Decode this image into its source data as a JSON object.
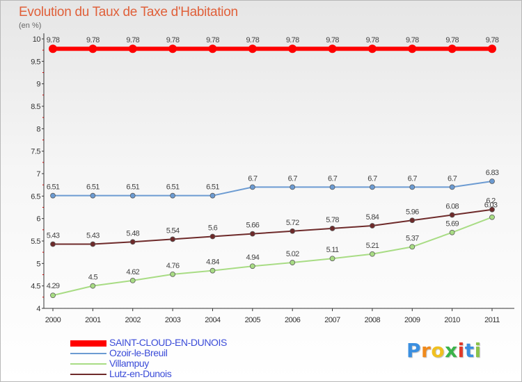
{
  "chart_data": {
    "type": "line",
    "title": "Evolution du Taux de Taxe d'Habitation",
    "subtitle": "(en %)",
    "x": [
      "2000",
      "2001",
      "2002",
      "2003",
      "2004",
      "2005",
      "2006",
      "2007",
      "2008",
      "2009",
      "2010",
      "2011"
    ],
    "ylim": [
      4,
      10
    ],
    "yticks": [
      "4",
      "4.5",
      "5",
      "5.5",
      "6",
      "6.5",
      "7",
      "7.5",
      "8",
      "8.5",
      "9",
      "9.5",
      "10"
    ],
    "grid": false,
    "legend_position": "bottom-left",
    "series": [
      {
        "name": "SAINT-CLOUD-EN-DUNOIS",
        "color": "#ff0000",
        "values": [
          9.78,
          9.78,
          9.78,
          9.78,
          9.78,
          9.78,
          9.78,
          9.78,
          9.78,
          9.78,
          9.78,
          9.78
        ],
        "labels": [
          "9.78",
          "9.78",
          "9.78",
          "9.78",
          "9.78",
          "9.78",
          "9.78",
          "9.78",
          "9.78",
          "9.78",
          "9.78",
          "9.78"
        ]
      },
      {
        "name": "Ozoir-le-Breuil",
        "color": "#6c9bd2",
        "values": [
          6.51,
          6.51,
          6.51,
          6.51,
          6.51,
          6.7,
          6.7,
          6.7,
          6.7,
          6.7,
          6.7,
          6.83
        ],
        "labels": [
          "6.51",
          "6.51",
          "6.51",
          "6.51",
          "6.51",
          "6.7",
          "6.7",
          "6.7",
          "6.7",
          "6.7",
          "6.7",
          "6.83"
        ]
      },
      {
        "name": "Villampuy",
        "color": "#a8dc84",
        "values": [
          4.29,
          4.5,
          4.62,
          4.76,
          4.84,
          4.94,
          5.02,
          5.11,
          5.21,
          5.37,
          5.69,
          6.03
        ],
        "labels": [
          "4.29",
          "4.5",
          "4.62",
          "4.76",
          "4.84",
          "4.94",
          "5.02",
          "5.11",
          "5.21",
          "5.37",
          "5.69",
          "6.03"
        ]
      },
      {
        "name": "Lutz-en-Dunois",
        "color": "#6e2a2a",
        "values": [
          5.43,
          5.43,
          5.48,
          5.54,
          5.6,
          5.66,
          5.72,
          5.78,
          5.84,
          5.96,
          6.08,
          6.2
        ],
        "labels": [
          "5.43",
          "5.43",
          "5.48",
          "5.54",
          "5.6",
          "5.66",
          "5.72",
          "5.78",
          "5.84",
          "5.96",
          "6.08",
          "6.2"
        ]
      }
    ]
  },
  "logo": {
    "letters": [
      "P",
      "r",
      "o",
      "x",
      "i",
      "t",
      "i"
    ],
    "colors": [
      "#3b8fe0",
      "#f08a1c",
      "#f0c020",
      "#3bb34a",
      "#e03a2a",
      "#3b8fe0",
      "#8bc34a"
    ]
  }
}
